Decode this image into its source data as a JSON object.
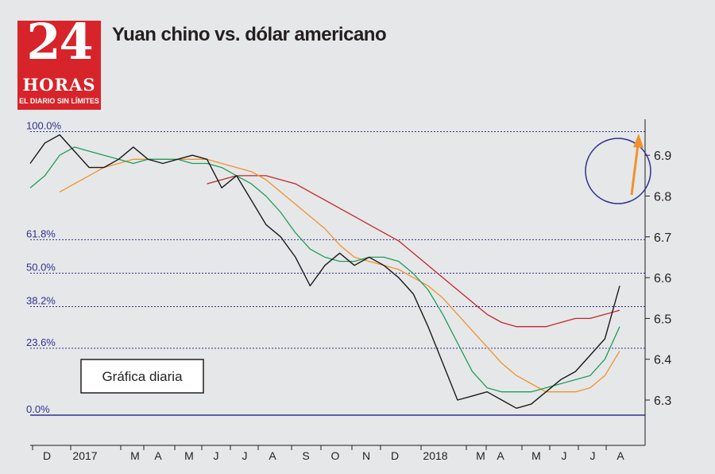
{
  "logo": {
    "number": "24",
    "word": "HORAS",
    "tagline": "EL DIARIO SIN LÍMITES"
  },
  "title": "Yuan chino vs. dólar americano",
  "colors": {
    "price": "#1a1a1a",
    "ma_short": "#1f9e5a",
    "ma_mid": "#f0922c",
    "ma_long": "#c1272d",
    "fib": "#2e3192",
    "arrow": "#f0922c",
    "circle": "#2e3192"
  },
  "chart_data": {
    "type": "line",
    "title": "Yuan chino vs. dólar americano",
    "annotation": "Gráfica diaria",
    "x_ticks": [
      "D",
      "2017",
      "M",
      "A",
      "M",
      "J",
      "J",
      "A",
      "S",
      "O",
      "N",
      "D",
      "2018",
      "M",
      "A",
      "M",
      "J",
      "J",
      "A"
    ],
    "y_right": {
      "ticks": [
        "6.3",
        "6.4",
        "6.5",
        "6.6",
        "6.7",
        "6.8",
        "6.9"
      ],
      "ylim": [
        6.24,
        6.98
      ]
    },
    "fib_levels": [
      {
        "label": "100.0%",
        "value": 6.958
      },
      {
        "label": "61.8%",
        "value": 6.693
      },
      {
        "label": "50.0%",
        "value": 6.611
      },
      {
        "label": "38.2%",
        "value": 6.529
      },
      {
        "label": "23.6%",
        "value": 6.427
      },
      {
        "label": "0.0%",
        "value": 6.263
      }
    ],
    "series": [
      {
        "key": "price",
        "x": [
          0,
          0.5,
          1,
          1.5,
          2,
          2.5,
          3,
          3.5,
          4,
          4.5,
          5,
          5.5,
          6,
          6.5,
          7,
          7.5,
          8,
          8.5,
          9,
          9.5,
          10,
          10.5,
          11,
          11.5,
          12,
          12.5,
          13,
          13.5,
          14,
          14.5,
          15,
          15.5,
          16,
          16.5,
          17,
          17.5,
          18,
          18.5,
          19,
          19.5,
          20
        ],
        "y": [
          6.88,
          6.93,
          6.95,
          6.91,
          6.87,
          6.87,
          6.89,
          6.92,
          6.89,
          6.88,
          6.89,
          6.9,
          6.89,
          6.82,
          6.85,
          6.79,
          6.73,
          6.7,
          6.65,
          6.58,
          6.63,
          6.66,
          6.63,
          6.65,
          6.63,
          6.6,
          6.56,
          6.48,
          6.39,
          6.3,
          6.31,
          6.32,
          6.3,
          6.28,
          6.29,
          6.32,
          6.35,
          6.37,
          6.41,
          6.45,
          6.58
        ]
      },
      {
        "key": "ma_short",
        "x": [
          0,
          0.5,
          1,
          1.5,
          2,
          2.5,
          3,
          3.5,
          4,
          4.5,
          5,
          5.5,
          6,
          6.5,
          7,
          7.5,
          8,
          8.5,
          9,
          9.5,
          10,
          10.5,
          11,
          11.5,
          12,
          12.5,
          13,
          13.5,
          14,
          14.5,
          15,
          15.5,
          16,
          16.5,
          17,
          17.5,
          18,
          18.5,
          19,
          19.5,
          20
        ],
        "y": [
          6.82,
          6.85,
          6.9,
          6.92,
          6.91,
          6.9,
          6.89,
          6.88,
          6.89,
          6.89,
          6.89,
          6.88,
          6.88,
          6.87,
          6.85,
          6.83,
          6.8,
          6.76,
          6.71,
          6.67,
          6.65,
          6.64,
          6.64,
          6.65,
          6.65,
          6.64,
          6.61,
          6.57,
          6.51,
          6.44,
          6.37,
          6.33,
          6.32,
          6.32,
          6.32,
          6.33,
          6.34,
          6.35,
          6.36,
          6.4,
          6.48
        ]
      },
      {
        "key": "ma_mid",
        "x": [
          1,
          1.5,
          2,
          2.5,
          3,
          3.5,
          4,
          4.5,
          5,
          5.5,
          6,
          6.5,
          7,
          7.5,
          8,
          8.5,
          9,
          9.5,
          10,
          10.5,
          11,
          11.5,
          12,
          12.5,
          13,
          13.5,
          14,
          14.5,
          15,
          15.5,
          16,
          16.5,
          17,
          17.5,
          18,
          18.5,
          19,
          19.5,
          20
        ],
        "y": [
          6.81,
          6.83,
          6.85,
          6.87,
          6.88,
          6.89,
          6.89,
          6.89,
          6.89,
          6.89,
          6.89,
          6.88,
          6.87,
          6.86,
          6.84,
          6.81,
          6.78,
          6.75,
          6.72,
          6.68,
          6.65,
          6.64,
          6.63,
          6.62,
          6.6,
          6.58,
          6.55,
          6.51,
          6.47,
          6.43,
          6.39,
          6.36,
          6.34,
          6.32,
          6.32,
          6.32,
          6.33,
          6.36,
          6.42
        ]
      },
      {
        "key": "ma_long",
        "x": [
          6,
          6.5,
          7,
          7.5,
          8,
          8.5,
          9,
          9.5,
          10,
          10.5,
          11,
          11.5,
          12,
          12.5,
          13,
          13.5,
          14,
          14.5,
          15,
          15.5,
          16,
          16.5,
          17,
          17.5,
          18,
          18.5,
          19,
          19.5,
          20
        ],
        "y": [
          6.83,
          6.84,
          6.85,
          6.85,
          6.85,
          6.84,
          6.83,
          6.81,
          6.79,
          6.77,
          6.75,
          6.73,
          6.71,
          6.69,
          6.66,
          6.63,
          6.6,
          6.57,
          6.54,
          6.51,
          6.49,
          6.48,
          6.48,
          6.48,
          6.49,
          6.5,
          6.5,
          6.51,
          6.52
        ]
      }
    ],
    "grid": false,
    "legend": "none"
  }
}
